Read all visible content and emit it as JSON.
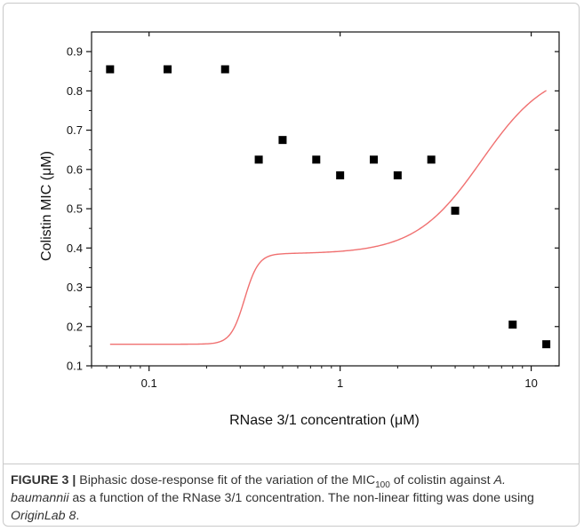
{
  "chart_data": {
    "type": "scatter",
    "xscale": "log",
    "xlim": [
      0.05,
      14
    ],
    "ylim": [
      0.1,
      0.95
    ],
    "xlabel": "RNase 3/1 concentration (μM)",
    "ylabel": "Colistin MIC (μM)",
    "xticks": [
      {
        "value": 0.1,
        "label": "0.1"
      },
      {
        "value": 1,
        "label": "1"
      },
      {
        "value": 10,
        "label": "10"
      }
    ],
    "yticks": [
      {
        "value": 0.1,
        "label": "0.1"
      },
      {
        "value": 0.2,
        "label": "0.2"
      },
      {
        "value": 0.3,
        "label": "0.3"
      },
      {
        "value": 0.4,
        "label": "0.4"
      },
      {
        "value": 0.5,
        "label": "0.5"
      },
      {
        "value": 0.6,
        "label": "0.6"
      },
      {
        "value": 0.7,
        "label": "0.7"
      },
      {
        "value": 0.8,
        "label": "0.8"
      },
      {
        "value": 0.9,
        "label": "0.9"
      }
    ],
    "grid": false,
    "legend": "none",
    "series": [
      {
        "marker": "square",
        "color": "#000000",
        "x": [
          0.0625,
          0.125,
          0.25,
          0.375,
          0.5,
          0.75,
          1,
          1.5,
          2,
          3,
          4,
          8,
          12
        ],
        "y": [
          0.855,
          0.855,
          0.855,
          0.625,
          0.675,
          0.625,
          0.585,
          0.625,
          0.585,
          0.625,
          0.495,
          0.205,
          0.155
        ]
      },
      {
        "type": "line",
        "color": "#f07070",
        "fit": "biphasic dose-response",
        "params": {
          "bottom": 0.155,
          "mid": 0.63,
          "top": 0.86,
          "logx01": -0.5,
          "logx02": 0.74,
          "h1": -12,
          "h2": -2.5
        },
        "x": [
          0.0625,
          12
        ]
      }
    ]
  },
  "caption": {
    "fig_label": "FIGURE 3 |",
    "text1": " Biphasic dose-response fit of the variation of the MIC",
    "sub": "100",
    "text2": " of colistin against ",
    "species": "A. baumannii",
    "text3": " as a function of the RNase 3/1 concentration. The non-linear fitting was done using ",
    "software": "OriginLab 8",
    "text4": "."
  }
}
